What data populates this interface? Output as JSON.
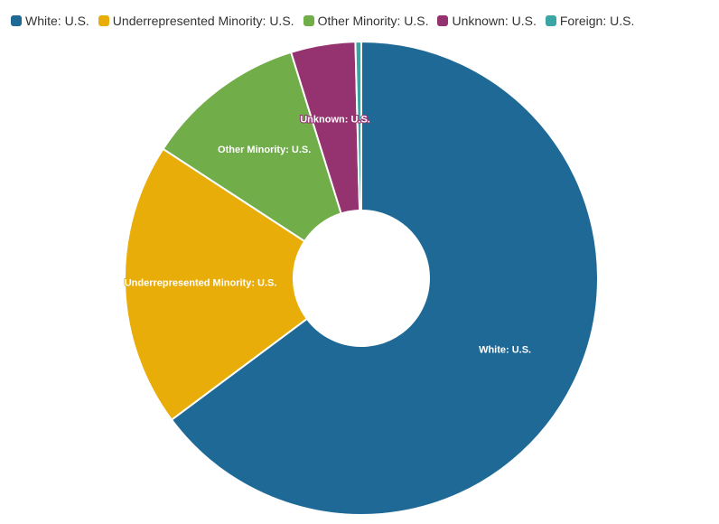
{
  "chart_data": {
    "type": "pie",
    "variant": "donut",
    "title": "",
    "legend_position": "top-left",
    "series": [
      {
        "name": "White: U.S.",
        "label": "White: U.S.",
        "value": 64.8,
        "color": "#1f6996"
      },
      {
        "name": "Underrepresented Minority: U.S.",
        "label": "Underrepresented Minority: U.S.",
        "value": 19.4,
        "color": "#e9ad0a"
      },
      {
        "name": "Other Minority: U.S.",
        "label": "Other Minority: U.S.",
        "value": 11.0,
        "color": "#71ad48"
      },
      {
        "name": "Unknown: U.S.",
        "label": "Unknown: U.S.",
        "value": 4.4,
        "color": "#953270"
      },
      {
        "name": "Foreign: U.S.",
        "label": "",
        "value": 0.4,
        "color": "#3aa5a2"
      }
    ]
  }
}
